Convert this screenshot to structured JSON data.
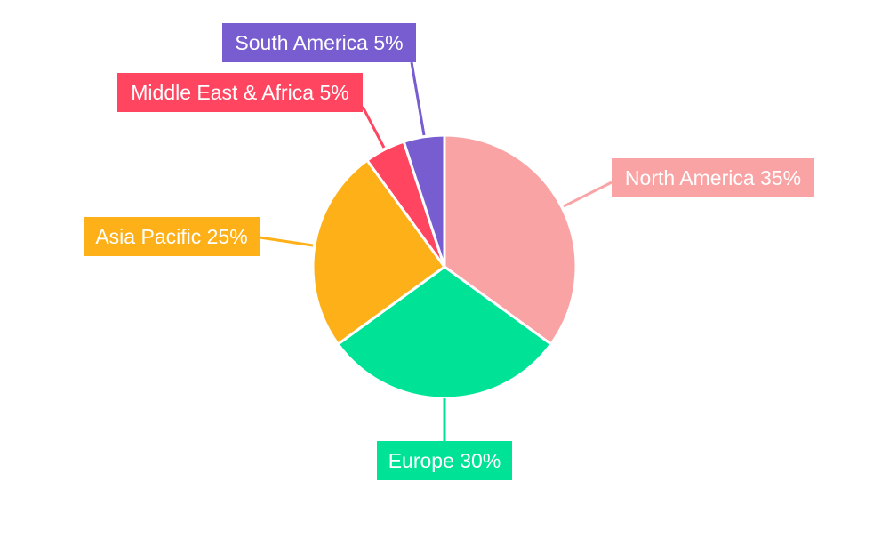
{
  "chart_data": {
    "type": "pie",
    "title": "",
    "start_angle": "top",
    "direction": "clockwise",
    "slices": [
      {
        "label": "North America",
        "value": 35,
        "text": "North America 35%",
        "color": "#F9A3A4"
      },
      {
        "label": "Europe",
        "value": 30,
        "text": "Europe 30%",
        "color": "#00E396"
      },
      {
        "label": "Asia Pacific",
        "value": 25,
        "text": "Asia Pacific 25%",
        "color": "#FEB019"
      },
      {
        "label": "Middle East & Africa",
        "value": 5,
        "text": "Middle East & Africa 5%",
        "color": "#FF4560"
      },
      {
        "label": "South America",
        "value": 5,
        "text": "South America 5%",
        "color": "#775DD0"
      }
    ]
  }
}
